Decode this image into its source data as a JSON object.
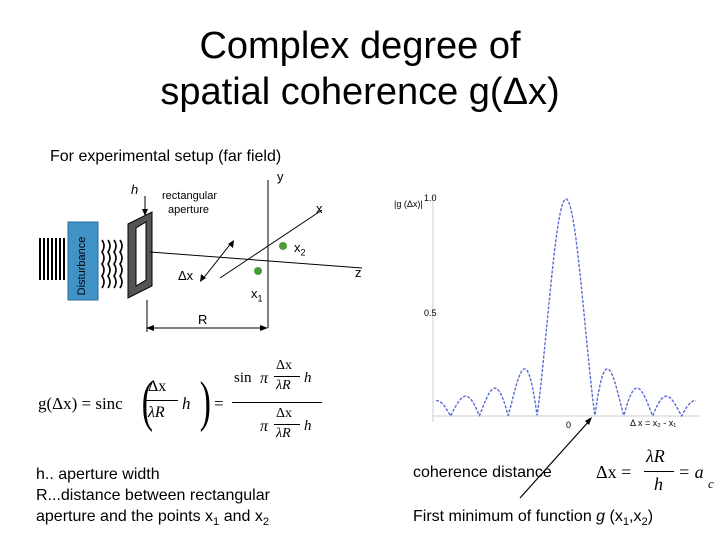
{
  "title": {
    "line1": "Complex degree of",
    "line2": "spatial coherence g(Δx)"
  },
  "subtitle": "For experimental setup (far field)",
  "setup": {
    "disturbance_label": "Disturbance",
    "aperture_label_line1": "rectangular",
    "aperture_label_line2": "aperture",
    "h_label": "h",
    "y_label": "y",
    "x_label": "x",
    "z_label": "z",
    "x2_label": "x",
    "x2_sub": "2",
    "x1_label": "x",
    "x1_sub": "1",
    "dx_label": "Δx",
    "R_label": "R"
  },
  "plot": {
    "ylabel": "|g (Δx)|",
    "tick_1": "1.0",
    "tick_05": "0.5",
    "tick_0": "0",
    "xlabel": "Δ x = x₂ - x₁"
  },
  "formula": {
    "lhs": "g(Δx) = sinc",
    "frac_num": "Δx",
    "frac_den": "λR",
    "h": "h",
    "sin": "sin",
    "pi": "π"
  },
  "definitions": {
    "line1": "h.. aperture width",
    "line2": "R...distance between rectangular",
    "line3_prefix": "aperture and the points x",
    "line3_sub1": "1",
    "line3_mid": " and x",
    "line3_sub2": "2"
  },
  "coherence": {
    "label": "coherence distance",
    "lhs": "Δx =",
    "num": "λR",
    "den": "h",
    "eq2": "= a",
    "eq2_sub": "c"
  },
  "minimum": {
    "prefix": "First minimum of function ",
    "g": "g",
    "args_open": " (x",
    "sub1": "1",
    "comma": ",x",
    "sub2": "2",
    "close": ")"
  },
  "colors": {
    "curve": "#5b6bd6",
    "dot": "#4a9a3a"
  }
}
